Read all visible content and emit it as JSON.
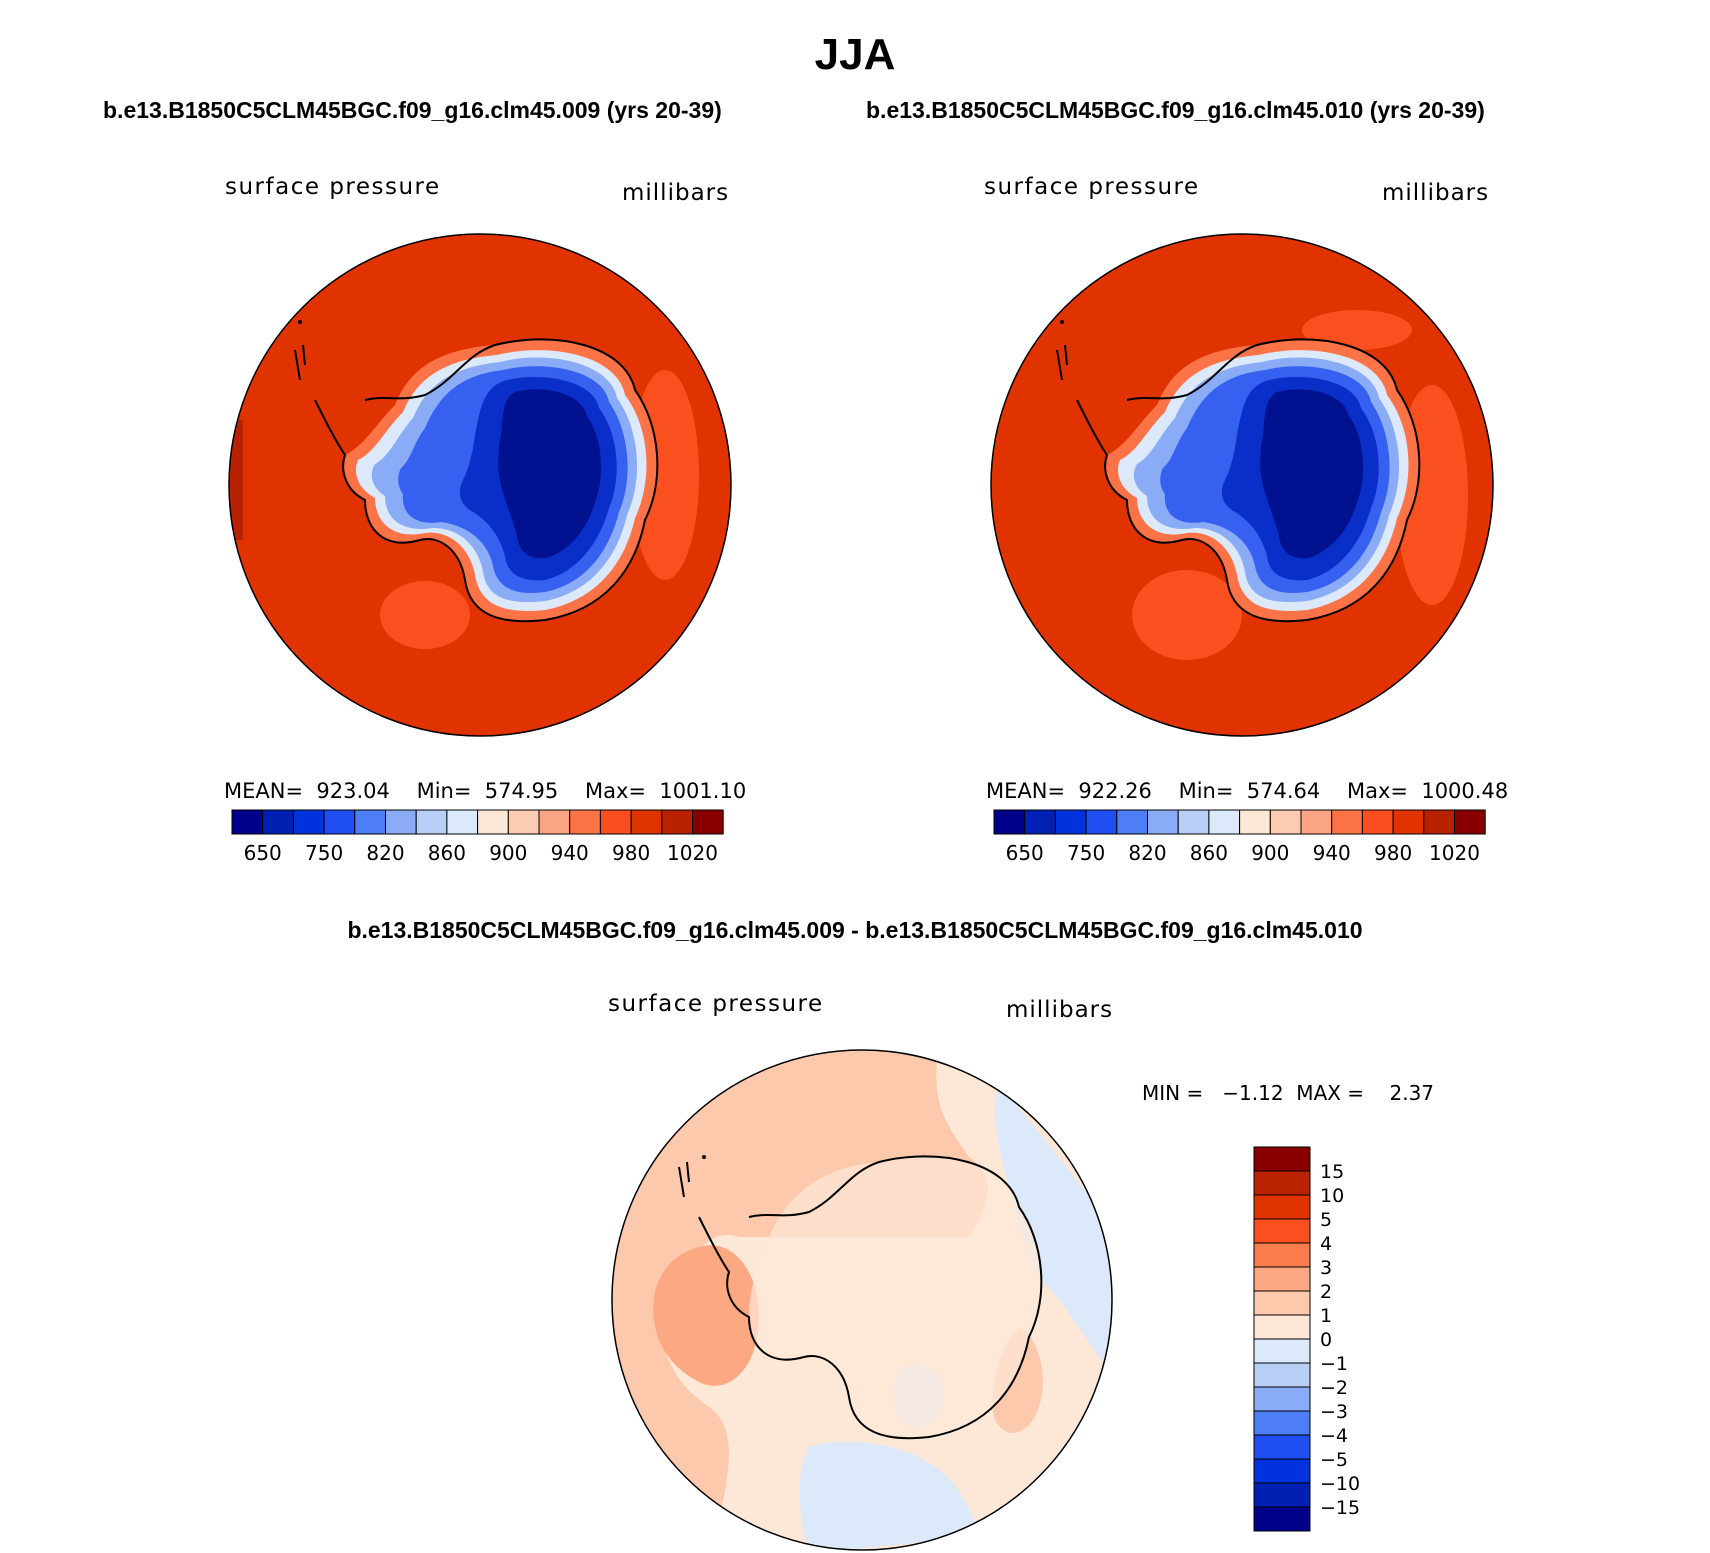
{
  "page": {
    "title": "JJA",
    "difference_title": "b.e13.B1850C5CLM45BGC.f09_g16.clm45.009 - b.e13.B1850C5CLM45BGC.f09_g16.clm45.010"
  },
  "panels": [
    {
      "case_title": "b.e13.B1850C5CLM45BGC.f09_g16.clm45.009 (yrs 20-39)",
      "variable": "surface pressure",
      "units": "millibars",
      "stats": "MEAN=  923.04    Min=  574.95    Max=  1001.10"
    },
    {
      "case_title": "b.e13.B1850C5CLM45BGC.f09_g16.clm45.010 (yrs 20-39)",
      "variable": "surface pressure",
      "units": "millibars",
      "stats": "MEAN=  922.26    Min=  574.64    Max=  1000.48"
    }
  ],
  "difference": {
    "variable": "surface pressure",
    "units": "millibars",
    "minmax": "MIN =   −1.12  MAX =    2.37"
  },
  "colorbar_main": {
    "colors": [
      "#00008b",
      "#0020b4",
      "#0033dd",
      "#1f4ff3",
      "#4d7ef5",
      "#8aabf5",
      "#b8cff5",
      "#dce9fa",
      "#fde8d8",
      "#fccbb2",
      "#fba483",
      "#fb7346",
      "#fa4d20",
      "#e03300",
      "#b82200",
      "#880000"
    ],
    "labels": [
      "650",
      "750",
      "820",
      "860",
      "900",
      "940",
      "980",
      "1020"
    ]
  },
  "colorbar_diff": {
    "colors": [
      "#880000",
      "#bb2200",
      "#e03300",
      "#fa5020",
      "#fb7d4d",
      "#fba883",
      "#fcc9ac",
      "#fde8d8",
      "#dce9fa",
      "#b8cff5",
      "#8aabf5",
      "#4d7ef5",
      "#1f4ff3",
      "#0033dd",
      "#0020b4",
      "#00008b"
    ],
    "labels": [
      "15",
      "10",
      "5",
      "4",
      "3",
      "2",
      "1",
      "0",
      "−1",
      "−2",
      "−3",
      "−4",
      "−5",
      "−10",
      "−15"
    ]
  }
}
